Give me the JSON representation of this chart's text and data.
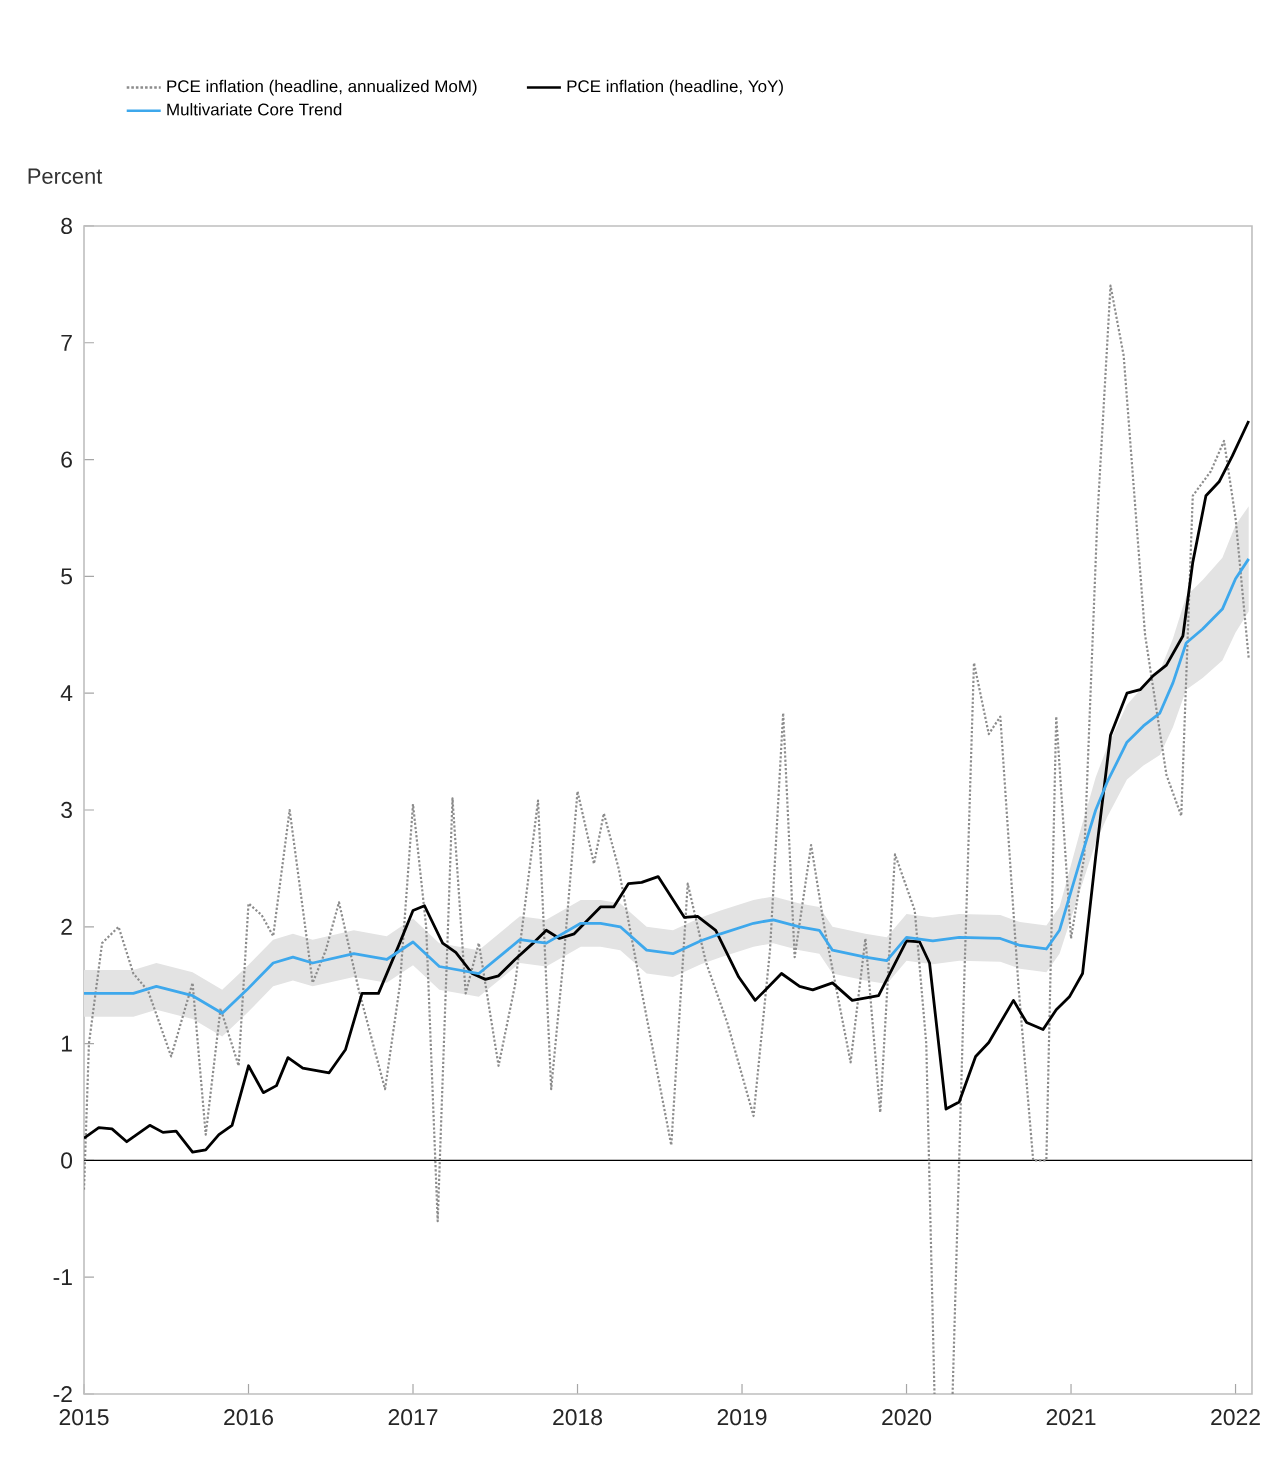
{
  "chart_data": {
    "type": "line",
    "ylabel": "Percent",
    "legend": "top",
    "xlim": [
      2015,
      2022.1
    ],
    "xticks": [
      2015,
      2016,
      2017,
      2018,
      2019,
      2020,
      2021,
      2022
    ],
    "ylim": [
      -2,
      8
    ],
    "yticks": [
      -2,
      -1,
      0,
      1,
      2,
      3,
      4,
      5,
      6,
      7,
      8
    ],
    "ref_lines": [
      {
        "axis": "y",
        "value": 0,
        "color": "#000000"
      }
    ],
    "series": [
      {
        "name": "PCE inflation (headline, annualized MoM)",
        "color": "#8c8c8c",
        "line_style": "dotted",
        "x": [
          2015.0,
          2015.03,
          2015.11,
          2015.21,
          2015.3,
          2015.39,
          2015.53,
          2015.66,
          2015.74,
          2015.83,
          2015.94,
          2016.0,
          2016.08,
          2016.15,
          2016.25,
          2016.39,
          2016.47,
          2016.55,
          2016.67,
          2016.83,
          2016.92,
          2017.0,
          2017.08,
          2017.15,
          2017.24,
          2017.32,
          2017.4,
          2017.52,
          2017.62,
          2017.76,
          2017.84,
          2017.92,
          2018.0,
          2018.1,
          2018.16,
          2018.25,
          2018.38,
          2018.57,
          2018.67,
          2018.78,
          2018.91,
          2019.07,
          2019.17,
          2019.25,
          2019.32,
          2019.42,
          2019.5,
          2019.66,
          2019.75,
          2019.84,
          2019.93,
          2020.05,
          2020.12,
          2020.17,
          2020.22,
          2020.28,
          2020.35,
          2020.41,
          2020.5,
          2020.57,
          2020.68,
          2020.77,
          2020.85,
          2020.91,
          2021.0,
          2021.08,
          2021.16,
          2021.24,
          2021.32,
          2021.45,
          2021.58,
          2021.67,
          2021.74,
          2021.85,
          2021.93,
          2022.0,
          2022.08
        ],
        "values": [
          -0.25,
          1.0,
          1.86,
          2.0,
          1.6,
          1.45,
          0.89,
          1.52,
          0.22,
          1.3,
          0.81,
          2.2,
          2.1,
          1.92,
          3.0,
          1.52,
          1.8,
          2.21,
          1.46,
          0.61,
          1.5,
          3.05,
          2.0,
          -0.52,
          3.1,
          1.43,
          1.86,
          0.81,
          1.5,
          3.08,
          0.61,
          1.8,
          3.16,
          2.54,
          2.97,
          2.5,
          1.52,
          0.13,
          2.37,
          1.7,
          1.18,
          0.38,
          1.8,
          3.83,
          1.74,
          2.7,
          2.0,
          0.84,
          1.9,
          0.41,
          2.62,
          2.14,
          1.0,
          -2,
          null,
          -2,
          1.5,
          4.26,
          3.65,
          3.8,
          1.5,
          0.0,
          0.0,
          3.8,
          1.9,
          2.6,
          5.5,
          7.49,
          6.89,
          4.5,
          3.3,
          2.95,
          5.69,
          5.9,
          6.16,
          5.5,
          4.3
        ]
      },
      {
        "name": "PCE inflation (headline, YoY)",
        "color": "#000000",
        "line_style": "solid",
        "x": [
          2015.0,
          2015.09,
          2015.17,
          2015.26,
          2015.4,
          2015.48,
          2015.56,
          2015.66,
          2015.74,
          2015.82,
          2015.9,
          2016.0,
          2016.09,
          2016.17,
          2016.24,
          2016.33,
          2016.49,
          2016.59,
          2016.69,
          2016.79,
          2016.91,
          2017.0,
          2017.07,
          2017.18,
          2017.26,
          2017.36,
          2017.44,
          2017.52,
          2017.62,
          2017.73,
          2017.81,
          2017.89,
          2017.98,
          2018.14,
          2018.22,
          2018.31,
          2018.39,
          2018.49,
          2018.65,
          2018.73,
          2018.84,
          2018.98,
          2019.08,
          2019.24,
          2019.35,
          2019.43,
          2019.55,
          2019.67,
          2019.83,
          2020.0,
          2020.08,
          2020.14,
          2020.24,
          2020.32,
          2020.42,
          2020.5,
          2020.65,
          2020.73,
          2020.83,
          2020.91,
          2020.99,
          2021.07,
          2021.15,
          2021.24,
          2021.34,
          2021.42,
          2021.5,
          2021.58,
          2021.68,
          2021.74,
          2021.82,
          2021.9,
          2021.98,
          2022.08
        ],
        "values": [
          0.19,
          0.28,
          0.27,
          0.16,
          0.3,
          0.24,
          0.25,
          0.07,
          0.09,
          0.22,
          0.3,
          0.81,
          0.58,
          0.64,
          0.88,
          0.79,
          0.75,
          0.95,
          1.43,
          1.43,
          1.83,
          2.14,
          2.18,
          1.86,
          1.78,
          1.6,
          1.55,
          1.58,
          1.72,
          1.86,
          1.97,
          1.9,
          1.94,
          2.17,
          2.17,
          2.37,
          2.38,
          2.43,
          2.08,
          2.09,
          1.97,
          1.57,
          1.37,
          1.6,
          1.49,
          1.46,
          1.52,
          1.37,
          1.41,
          1.88,
          1.87,
          1.69,
          0.44,
          0.5,
          0.89,
          1.01,
          1.37,
          1.18,
          1.12,
          1.29,
          1.4,
          1.6,
          2.6,
          3.64,
          4.0,
          4.03,
          4.15,
          4.24,
          4.49,
          5.12,
          5.69,
          5.81,
          6.03,
          6.33
        ]
      },
      {
        "name": "Multivariate Core Trend",
        "color": "#3ea8ec",
        "line_style": "solid",
        "x": [
          2015.0,
          2015.3,
          2015.44,
          2015.66,
          2015.84,
          2015.99,
          2016.15,
          2016.27,
          2016.39,
          2016.64,
          2016.84,
          2017.0,
          2017.16,
          2017.4,
          2017.65,
          2017.81,
          2018.02,
          2018.14,
          2018.26,
          2018.42,
          2018.58,
          2018.75,
          2018.87,
          2019.07,
          2019.19,
          2019.35,
          2019.47,
          2019.55,
          2019.75,
          2019.88,
          2020.0,
          2020.16,
          2020.32,
          2020.57,
          2020.69,
          2020.85,
          2020.93,
          2021.05,
          2021.15,
          2021.22,
          2021.34,
          2021.44,
          2021.54,
          2021.62,
          2021.7,
          2021.8,
          2021.92,
          2022.0,
          2022.08
        ],
        "values": [
          1.43,
          1.43,
          1.49,
          1.41,
          1.26,
          1.46,
          1.69,
          1.74,
          1.69,
          1.77,
          1.72,
          1.87,
          1.66,
          1.6,
          1.89,
          1.86,
          2.03,
          2.03,
          2.0,
          1.8,
          1.77,
          1.88,
          1.94,
          2.03,
          2.06,
          2.0,
          1.97,
          1.8,
          1.74,
          1.71,
          1.91,
          1.88,
          1.91,
          1.9,
          1.84,
          1.81,
          1.97,
          2.54,
          3.0,
          3.24,
          3.58,
          3.72,
          3.83,
          4.09,
          4.43,
          4.55,
          4.72,
          4.98,
          5.15
        ],
        "lower": [
          1.23,
          1.23,
          1.29,
          1.21,
          1.06,
          1.26,
          1.49,
          1.54,
          1.49,
          1.57,
          1.52,
          1.67,
          1.46,
          1.4,
          1.69,
          1.66,
          1.83,
          1.83,
          1.8,
          1.6,
          1.57,
          1.68,
          1.74,
          1.83,
          1.86,
          1.8,
          1.77,
          1.6,
          1.54,
          1.51,
          1.71,
          1.68,
          1.71,
          1.7,
          1.64,
          1.61,
          1.77,
          2.29,
          2.72,
          2.94,
          3.26,
          3.38,
          3.47,
          3.71,
          4.03,
          4.13,
          4.28,
          4.52,
          4.7
        ],
        "upper": [
          1.63,
          1.63,
          1.69,
          1.61,
          1.46,
          1.66,
          1.89,
          1.94,
          1.89,
          1.97,
          1.92,
          2.07,
          1.86,
          1.8,
          2.09,
          2.06,
          2.23,
          2.23,
          2.2,
          2.0,
          1.97,
          2.08,
          2.14,
          2.23,
          2.26,
          2.2,
          2.17,
          2.0,
          1.94,
          1.91,
          2.11,
          2.08,
          2.11,
          2.1,
          2.04,
          2.01,
          2.17,
          2.79,
          3.28,
          3.54,
          3.9,
          4.06,
          4.19,
          4.47,
          4.83,
          4.97,
          5.16,
          5.44,
          5.6
        ]
      }
    ]
  }
}
